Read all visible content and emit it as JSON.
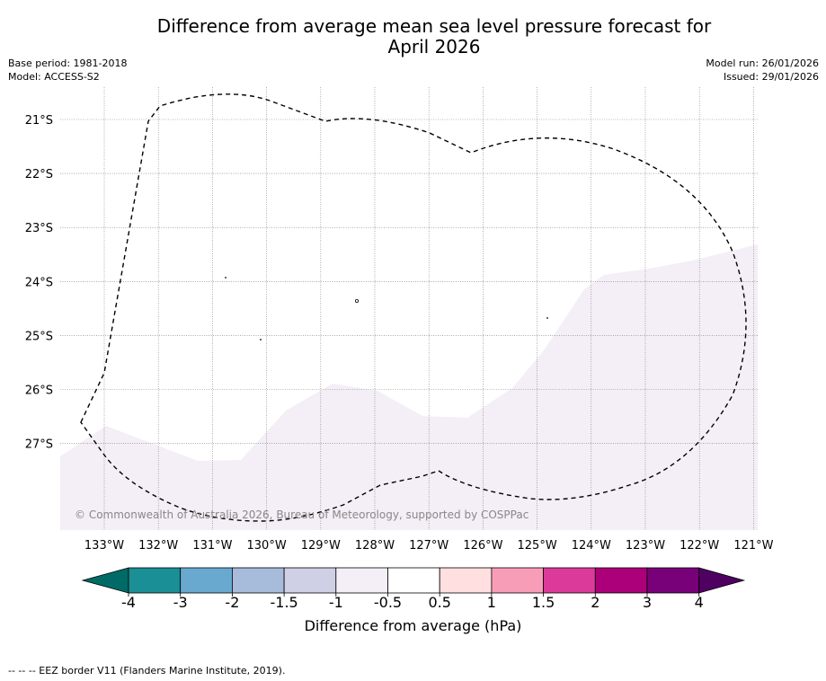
{
  "title_line1": "Difference from average mean sea level pressure forecast for",
  "title_line2": "April 2026",
  "base_period": "Base period: 1981-2018",
  "model": "Model: ACCESS-S2",
  "model_run": "Model run: 26/01/2026",
  "issued": "Issued: 29/01/2026",
  "copyright": "© Commonwealth of Australia 2026, Bureau of Meteorology, supported by COSPPac",
  "lat_labels": [
    "21°S",
    "22°S",
    "23°S",
    "24°S",
    "25°S",
    "26°S",
    "27°S"
  ],
  "lon_labels": [
    "133°W",
    "132°W",
    "131°W",
    "130°W",
    "129°W",
    "128°W",
    "127°W",
    "126°W",
    "125°W",
    "124°W",
    "123°W",
    "122°W",
    "121°W"
  ],
  "colorbar": {
    "ticks": [
      "-4",
      "-3",
      "-2",
      "-1.5",
      "-1",
      "-0.5",
      "0.5",
      "1",
      "1.5",
      "2",
      "3",
      "4"
    ],
    "colors": [
      "#1a8f95",
      "#69a9d0",
      "#a7bbdb",
      "#cfd0e5",
      "#f4eef7",
      "#ffffff",
      "#ffdfe0",
      "#f89db8",
      "#dc3a9b",
      "#ab0079",
      "#780078"
    ],
    "under_color": "#006a66",
    "over_color": "#4f0060",
    "label": "Difference from average (hPa)"
  },
  "anomaly_fill_color": "#f4eef7",
  "footnote": "--  --  -- EEZ border V11 (Flanders Marine Institute, 2019)."
}
